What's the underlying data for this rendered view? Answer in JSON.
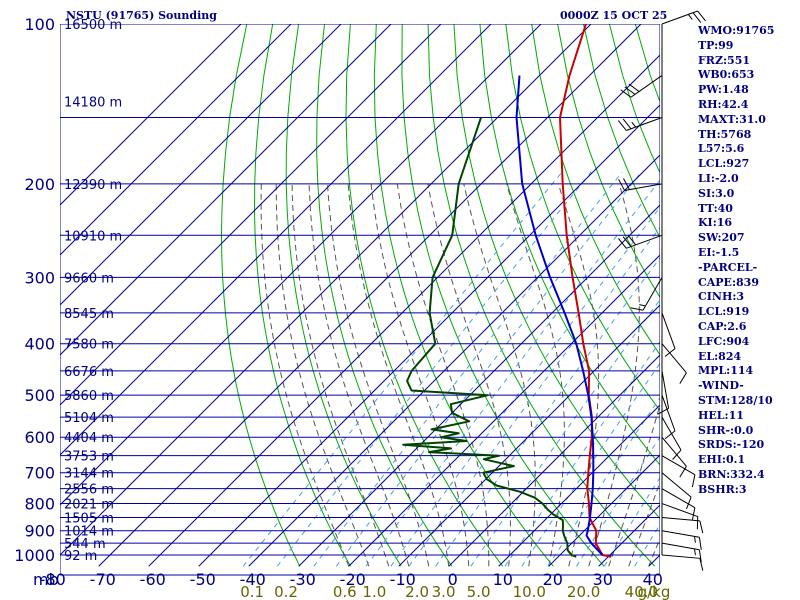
{
  "header": {
    "title": "NSTU (91765) Sounding",
    "datetime": "0000Z 15 OCT 25"
  },
  "indices": [
    "WMO:91765",
    "TP:99",
    "FRZ:551",
    "WB0:653",
    "PW:1.48",
    "RH:42.4",
    "MAXT:31.0",
    "TH:5768",
    "L57:5.6",
    "LCL:927",
    "LI:-2.0",
    "SI:3.0",
    "TT:40",
    "KI:16",
    "SW:207",
    "EI:-1.5",
    "-PARCEL-",
    "CAPE:839",
    "CINH:3",
    "LCL:919",
    "CAP:2.6",
    "LFC:904",
    "EL:824",
    "MPL:114",
    "-WIND-",
    "STM:128/10",
    "HEL:11",
    "SHR-:0.0",
    "SRDS:-120",
    "EHI:0.1",
    "BRN:332.4",
    "BSHR:3"
  ],
  "colors": {
    "background": "#ffffff",
    "grid": "#0000a0",
    "dry_adiabat": "#00aa00",
    "moist_adiabat": "#555555",
    "mixing_ratio": "#4aa0e0",
    "temperature": "#cc0000",
    "dewpoint": "#004400",
    "parcel": "#0000cc",
    "wind": "#000000",
    "labels": "#000080",
    "mixing_labels": "#666600"
  },
  "chart_data": {
    "type": "line",
    "chart_kind": "skew-t log-p sounding",
    "y_scale": "log",
    "ylim": [
      1000,
      100
    ],
    "xlim": [
      -80,
      40
    ],
    "pressure_levels": [
      100,
      200,
      300,
      400,
      500,
      600,
      700,
      800,
      900,
      1000
    ],
    "pressure_unit_label": "mb",
    "temperature_ticks": [
      -80,
      -70,
      -60,
      -50,
      -40,
      -30,
      -20,
      -10,
      0,
      10,
      20,
      30,
      40
    ],
    "height_labels": [
      {
        "p": 100,
        "label": "16500 m"
      },
      {
        "p": 140,
        "label": "14180 m"
      },
      {
        "p": 200,
        "label": "12390 m"
      },
      {
        "p": 250,
        "label": "10910 m"
      },
      {
        "p": 300,
        "label": "9660 m"
      },
      {
        "p": 350,
        "label": "8545 m"
      },
      {
        "p": 400,
        "label": "7580 m"
      },
      {
        "p": 450,
        "label": "6676 m"
      },
      {
        "p": 500,
        "label": "5860 m"
      },
      {
        "p": 550,
        "label": "5104 m"
      },
      {
        "p": 600,
        "label": "4404 m"
      },
      {
        "p": 650,
        "label": "3753 m"
      },
      {
        "p": 700,
        "label": "3144 m"
      },
      {
        "p": 750,
        "label": "2556 m"
      },
      {
        "p": 800,
        "label": "2021 m"
      },
      {
        "p": 850,
        "label": "1505 m"
      },
      {
        "p": 900,
        "label": "1014 m"
      },
      {
        "p": 950,
        "label": "544 m"
      },
      {
        "p": 1000,
        "label": "92 m"
      }
    ],
    "mixing_ratio_labels": [
      {
        "w": 0.1,
        "label": "0.1"
      },
      {
        "w": 0.2,
        "label": "0.2"
      },
      {
        "w": 0.6,
        "label": "0.6"
      },
      {
        "w": 1.0,
        "label": "1.0"
      },
      {
        "w": 2.0,
        "label": "2.0"
      },
      {
        "w": 3.0,
        "label": "3.0"
      },
      {
        "w": 5.0,
        "label": "5.0"
      },
      {
        "w": 10.0,
        "label": "10.0"
      },
      {
        "w": 20.0,
        "label": "20.0"
      },
      {
        "w": 40.0,
        "label": "40.0"
      }
    ],
    "mixing_ratio_unit": "g/kg",
    "series": [
      {
        "key": "temperature",
        "points": [
          [
            1008,
            30.6
          ],
          [
            1000,
            28.5
          ],
          [
            950,
            24.8
          ],
          [
            900,
            22.4
          ],
          [
            850,
            18.4
          ],
          [
            800,
            15.5
          ],
          [
            750,
            12.2
          ],
          [
            700,
            9.2
          ],
          [
            650,
            6.1
          ],
          [
            600,
            2.8
          ],
          [
            550,
            -1.2
          ],
          [
            500,
            -6.2
          ],
          [
            450,
            -11.0
          ],
          [
            400,
            -17.6
          ],
          [
            350,
            -24.7
          ],
          [
            300,
            -33.0
          ],
          [
            250,
            -42.6
          ],
          [
            200,
            -53.7
          ],
          [
            150,
            -67.5
          ],
          [
            125,
            -74.0
          ],
          [
            100,
            -81.0
          ]
        ]
      },
      {
        "key": "dewpoint",
        "points": [
          [
            1008,
            23.6
          ],
          [
            1000,
            22.3
          ],
          [
            980,
            20.6
          ],
          [
            950,
            19.1
          ],
          [
            920,
            17.0
          ],
          [
            900,
            15.7
          ],
          [
            880,
            14.7
          ],
          [
            860,
            13.6
          ],
          [
            850,
            12.2
          ],
          [
            840,
            10.7
          ],
          [
            820,
            8.3
          ],
          [
            800,
            6.2
          ],
          [
            780,
            3.5
          ],
          [
            760,
            -0.7
          ],
          [
            740,
            -6.5
          ],
          [
            720,
            -9.8
          ],
          [
            700,
            -11.8
          ],
          [
            680,
            -7.0
          ],
          [
            660,
            -14.4
          ],
          [
            650,
            -12.0
          ],
          [
            640,
            -26.8
          ],
          [
            630,
            -23.1
          ],
          [
            620,
            -33.4
          ],
          [
            610,
            -21.5
          ],
          [
            600,
            -27.3
          ],
          [
            590,
            -24.6
          ],
          [
            580,
            -30.8
          ],
          [
            560,
            -24.9
          ],
          [
            540,
            -30.0
          ],
          [
            520,
            -32.0
          ],
          [
            500,
            -26.4
          ],
          [
            490,
            -42.6
          ],
          [
            470,
            -45.4
          ],
          [
            450,
            -46.5
          ],
          [
            400,
            -47.2
          ],
          [
            350,
            -54.5
          ],
          [
            300,
            -61.0
          ],
          [
            250,
            -65.5
          ],
          [
            200,
            -74.5
          ],
          [
            150,
            -83.3
          ]
        ]
      },
      {
        "key": "parcel",
        "points": [
          [
            1000,
            28.5
          ],
          [
            950,
            23.9
          ],
          [
            919,
            21.4
          ],
          [
            900,
            20.7
          ],
          [
            850,
            18.5
          ],
          [
            800,
            16.0
          ],
          [
            750,
            13.3
          ],
          [
            700,
            10.2
          ],
          [
            650,
            6.8
          ],
          [
            600,
            3.0
          ],
          [
            550,
            -1.3
          ],
          [
            500,
            -6.3
          ],
          [
            450,
            -12.2
          ],
          [
            400,
            -19.0
          ],
          [
            350,
            -27.5
          ],
          [
            300,
            -37.5
          ],
          [
            250,
            -48.8
          ],
          [
            200,
            -61.8
          ],
          [
            150,
            -76.2
          ],
          [
            125,
            -84.0
          ]
        ]
      }
    ],
    "wind_barbs": [
      {
        "p": 1000,
        "dir": 95,
        "spd": 10
      },
      {
        "p": 950,
        "dir": 100,
        "spd": 15
      },
      {
        "p": 900,
        "dir": 100,
        "spd": 15
      },
      {
        "p": 850,
        "dir": 95,
        "spd": 10
      },
      {
        "p": 800,
        "dir": 110,
        "spd": 10
      },
      {
        "p": 750,
        "dir": 120,
        "spd": 10
      },
      {
        "p": 700,
        "dir": 130,
        "spd": 10
      },
      {
        "p": 650,
        "dir": 120,
        "spd": 10
      },
      {
        "p": 600,
        "dir": 140,
        "spd": 10
      },
      {
        "p": 550,
        "dir": 150,
        "spd": 10
      },
      {
        "p": 500,
        "dir": 160,
        "spd": 10
      },
      {
        "p": 450,
        "dir": 170,
        "spd": 10
      },
      {
        "p": 400,
        "dir": 140,
        "spd": 10
      },
      {
        "p": 350,
        "dir": 160,
        "spd": 10
      },
      {
        "p": 300,
        "dir": 210,
        "spd": 15
      },
      {
        "p": 250,
        "dir": 250,
        "spd": 30
      },
      {
        "p": 200,
        "dir": 260,
        "spd": 20
      },
      {
        "p": 150,
        "dir": 250,
        "spd": 25
      },
      {
        "p": 125,
        "dir": 235,
        "spd": 30
      },
      {
        "p": 100,
        "dir": 70,
        "spd": 25
      }
    ]
  }
}
